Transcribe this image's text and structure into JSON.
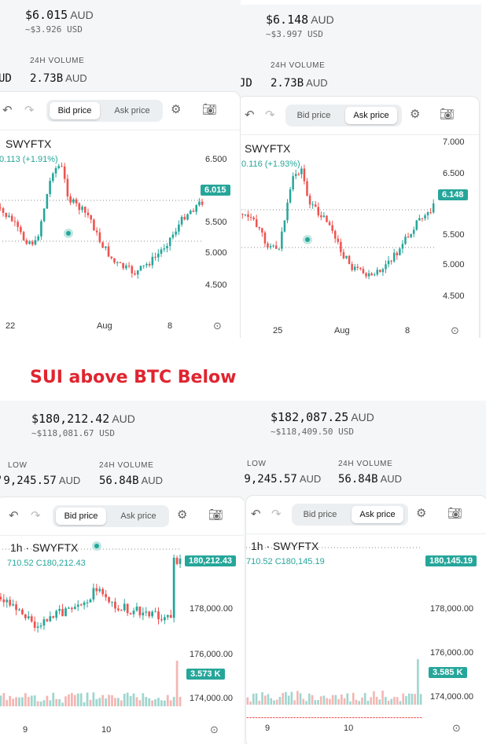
{
  "heading": "SUI above BTC Below",
  "colors": {
    "up": "#26a69a",
    "down": "#ef5350",
    "accent": "#26a69a",
    "heading": "#e0242f"
  },
  "panels": [
    {
      "id": "sui-bid",
      "price": "$6.015",
      "price_cur": "AUD",
      "sub_price": "~$3.926 USD",
      "vol_label": "24H VOLUME",
      "vol_value": "2.73B",
      "vol_cur": "AUD",
      "left_cut": "UD",
      "toggle": {
        "bid": "Bid price",
        "ask": "Ask price",
        "selected": "bid"
      },
      "symbol": "SWYFTX",
      "change": "0.113 (+1.91%)",
      "price_tag": "6.015",
      "y_ticks": [
        "6.500",
        "6.000",
        "5.500",
        "5.000",
        "4.500"
      ],
      "x_ticks": [
        "22",
        "Aug",
        "8"
      ]
    },
    {
      "id": "sui-ask",
      "price": "$6.148",
      "price_cur": "AUD",
      "sub_price": "~$3.997 USD",
      "vol_label": "24H VOLUME",
      "vol_value": "2.73B",
      "vol_cur": "AUD",
      "left_cut": "JD",
      "toggle": {
        "bid": "Bid price",
        "ask": "Ask price",
        "selected": "ask"
      },
      "symbol": "SWYFTX",
      "change": "0.116 (+1.93%)",
      "price_tag": "6.148",
      "y_ticks": [
        "7.000",
        "6.500",
        "6.000",
        "5.500",
        "5.000",
        "4.500"
      ],
      "x_ticks": [
        "25",
        "Aug",
        "8"
      ]
    },
    {
      "id": "btc-bid",
      "price": "$180,212.42",
      "price_cur": "AUD",
      "sub_price": "~$118,081.67 USD",
      "low_label": "LOW",
      "low_value": "'9,245.57",
      "low_cur": "AUD",
      "vol_label": "24H VOLUME",
      "vol_value": "56.84B",
      "vol_cur": "AUD",
      "toggle": {
        "bid": "Bid price",
        "ask": "Ask price",
        "selected": "bid"
      },
      "symbol": "1h · SWYFTX",
      "ohlc": "710.52 C180,212.43",
      "price_tag": "180,212.43",
      "vol_tag": "3.573 K",
      "y_ticks": [
        "178,000.00",
        "176,000.00",
        "174,000.00"
      ],
      "x_ticks": [
        "9",
        "10"
      ]
    },
    {
      "id": "btc-ask",
      "price": "$182,087.25",
      "price_cur": "AUD",
      "sub_price": "~$118,409.50 USD",
      "low_label": "LOW",
      "low_value": "'9,245.57",
      "low_cur": "AUD",
      "vol_label": "24H VOLUME",
      "vol_value": "56.84B",
      "vol_cur": "AUD",
      "toggle": {
        "bid": "Bid price",
        "ask": "Ask price",
        "selected": "ask"
      },
      "symbol": "1h · SWYFTX",
      "ohlc": "710.52 C180,145.19",
      "price_tag": "180,145.19",
      "vol_tag": "3.585 K",
      "y_ticks": [
        "178,000.00",
        "176,000.00",
        "174,000.00"
      ],
      "x_ticks": [
        "9",
        "10"
      ]
    }
  ]
}
